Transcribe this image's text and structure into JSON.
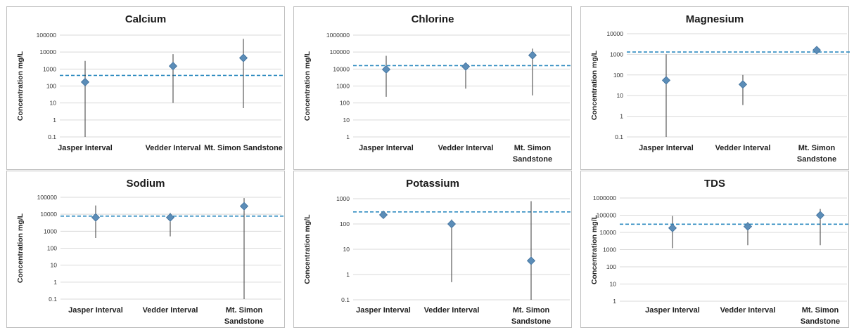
{
  "chart_data": [
    {
      "type": "scatter",
      "title": "Calcium",
      "ylabel": "Concentration mg/L",
      "yscale": "log",
      "ylim": [
        0.1,
        100000
      ],
      "yticks": [
        "0.1",
        "1",
        "10",
        "100",
        "1000",
        "10000",
        "100000"
      ],
      "categories": [
        "Jasper Interval",
        "Vedder Interval",
        "Mt. Simon Sandstone"
      ],
      "values": [
        170,
        1500,
        4500
      ],
      "error_low": [
        0.1,
        10,
        5
      ],
      "error_high": [
        3000,
        7500,
        60000
      ],
      "reference_line": 420,
      "grid": true,
      "marker_color": "#5b8db8",
      "reference_color": "#2e8bc0"
    },
    {
      "type": "scatter",
      "title": "Chlorine",
      "ylabel": "Concentration mg/L",
      "yscale": "log",
      "ylim": [
        1,
        1000000
      ],
      "yticks": [
        "1",
        "10",
        "100",
        "1000",
        "10000",
        "100000",
        "1000000"
      ],
      "categories": [
        "Jasper Interval",
        "Vedder Interval",
        "Mt. Simon Sandstone"
      ],
      "values": [
        9500,
        14000,
        65000
      ],
      "error_low": [
        230,
        700,
        280
      ],
      "error_high": [
        60000,
        22000,
        160000
      ],
      "reference_line": 16000,
      "grid": true,
      "marker_color": "#5b8db8",
      "reference_color": "#2e8bc0"
    },
    {
      "type": "scatter",
      "title": "Magnesium",
      "ylabel": "Concentration mg/L",
      "yscale": "log",
      "ylim": [
        0.1,
        10000
      ],
      "yticks": [
        "0.1",
        "1",
        "10",
        "100",
        "1000",
        "10000"
      ],
      "categories": [
        "Jasper Interval",
        "Vedder Interval",
        "Mt. Simon Sandstone"
      ],
      "values": [
        55,
        35,
        1600
      ],
      "error_low": [
        0.1,
        3.5,
        null
      ],
      "error_high": [
        1000,
        100,
        null
      ],
      "reference_line": 1300,
      "grid": true,
      "marker_color": "#5b8db8",
      "reference_color": "#2e8bc0"
    },
    {
      "type": "scatter",
      "title": "Sodium",
      "ylabel": "Concentration mg/L",
      "yscale": "log",
      "ylim": [
        0.1,
        100000
      ],
      "yticks": [
        "0.1",
        "1",
        "10",
        "100",
        "1000",
        "10000",
        "100000"
      ],
      "categories": [
        "Jasper Interval",
        "Vedder Interval",
        "Mt. Simon Sandstone"
      ],
      "values": [
        6500,
        6500,
        30000
      ],
      "error_low": [
        400,
        500,
        0.1
      ],
      "error_high": [
        33000,
        12000,
        90000
      ],
      "reference_line": 7800,
      "grid": true,
      "marker_color": "#5b8db8",
      "reference_color": "#2e8bc0"
    },
    {
      "type": "scatter",
      "title": "Potassium",
      "ylabel": "Concentration mg/L",
      "yscale": "log",
      "ylim": [
        0.1,
        1000
      ],
      "yticks": [
        "0.1",
        "1",
        "10",
        "100",
        "1000"
      ],
      "categories": [
        "Jasper Interval",
        "Vedder Interval",
        "Mt. Simon Sandstone"
      ],
      "values": [
        230,
        100,
        3.5
      ],
      "error_low": [
        190,
        0.5,
        0.1
      ],
      "error_high": [
        270,
        150,
        800
      ],
      "reference_line": 300,
      "grid": true,
      "marker_color": "#5b8db8",
      "reference_color": "#2e8bc0"
    },
    {
      "type": "scatter",
      "title": "TDS",
      "ylabel": "Concentration mg/L",
      "yscale": "log",
      "ylim": [
        1,
        1000000
      ],
      "yticks": [
        "1",
        "10",
        "100",
        "1000",
        "10000",
        "100000",
        "1000000"
      ],
      "categories": [
        "Jasper Interval",
        "Vedder Interval",
        "Mt. Simon Sandstone"
      ],
      "values": [
        18000,
        22000,
        100000
      ],
      "error_low": [
        1200,
        1800,
        1800
      ],
      "error_high": [
        90000,
        40000,
        230000
      ],
      "reference_line": 30000,
      "grid": true,
      "marker_color": "#5b8db8",
      "reference_color": "#2e8bc0"
    }
  ]
}
